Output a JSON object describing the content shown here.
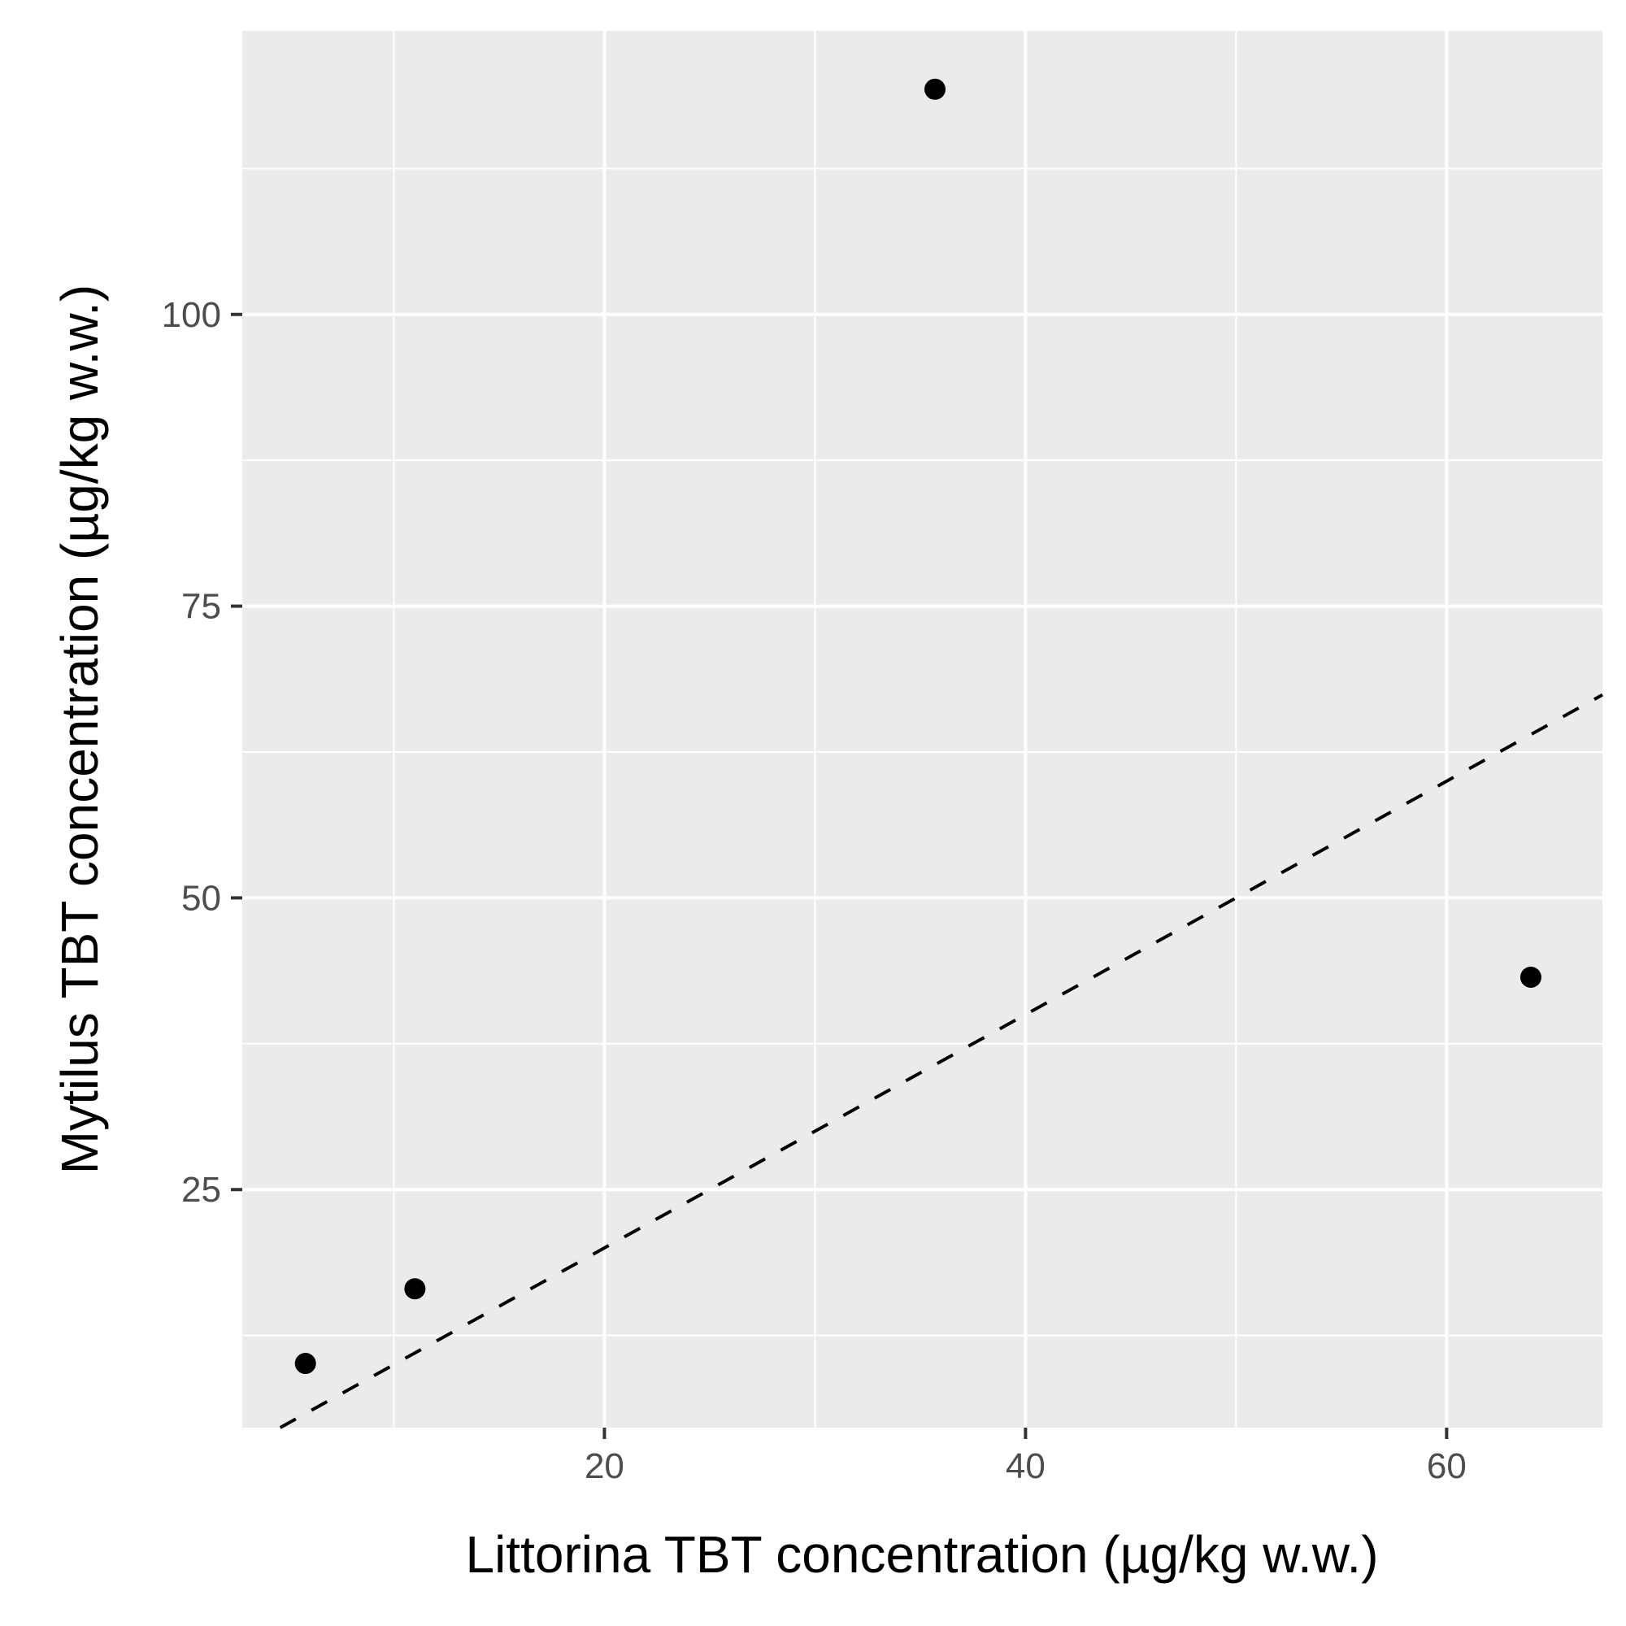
{
  "chart_data": {
    "type": "scatter",
    "title": "",
    "xlabel": "Littorina TBT concentration (µg/kg w.w.)",
    "ylabel": "Mytilus TBT concentration (µg/kg w.w.)",
    "xlim": [
      2.8,
      67.4
    ],
    "ylim": [
      4.6,
      124.3
    ],
    "x_ticks": [
      20,
      40,
      60
    ],
    "x_tick_labels": [
      "20",
      "40",
      "60"
    ],
    "y_ticks": [
      25,
      50,
      75,
      100
    ],
    "y_tick_labels": [
      "25",
      "50",
      "75",
      "100"
    ],
    "grid": true,
    "legend": "none",
    "series": [
      {
        "points": [
          {
            "x": 5.8,
            "y": 10.1
          },
          {
            "x": 11.0,
            "y": 16.5
          },
          {
            "x": 35.7,
            "y": 119.3
          },
          {
            "x": 64.0,
            "y": 43.2
          }
        ]
      }
    ],
    "reference_line": {
      "style": "dashed",
      "slope": 1,
      "intercept": 0
    },
    "colors": {
      "panel": "#ebebeb",
      "grid": "#ffffff",
      "points": "#000000",
      "line": "#000000"
    }
  }
}
